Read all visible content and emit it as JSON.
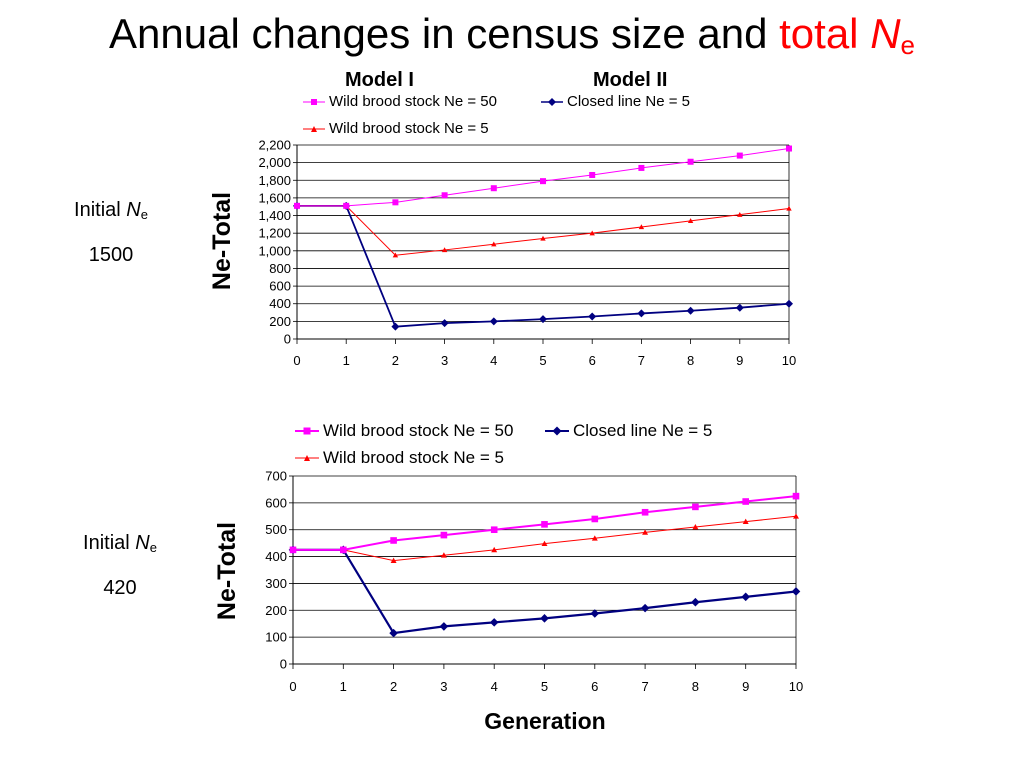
{
  "title": {
    "main": "Annual changes in census size and ",
    "red": "total ",
    "red_italic": "N",
    "red_sub": "e"
  },
  "model_labels": {
    "left": "Model I",
    "right": "Model II"
  },
  "side_labels": [
    {
      "prefix": "Initial ",
      "italic": "N",
      "sub": "e",
      "value": "1500"
    },
    {
      "prefix": "Initial ",
      "italic": "N",
      "sub": "e",
      "value": "420"
    }
  ],
  "chart_data": [
    {
      "type": "line",
      "ylabel": "Ne-Total",
      "xlabel": "",
      "x": [
        0,
        1,
        2,
        3,
        4,
        5,
        6,
        7,
        8,
        9,
        10
      ],
      "ylim": [
        0,
        2200
      ],
      "ytick_step": 200,
      "grid": true,
      "legend": "top",
      "series": [
        {
          "name": "Wild brood stock Ne = 50",
          "color": "#ff00ff",
          "marker": "square",
          "values": [
            1510,
            1510,
            1550,
            1630,
            1710,
            1790,
            1860,
            1940,
            2010,
            2080,
            2160
          ]
        },
        {
          "name": "Closed line Ne = 5",
          "color": "#000080",
          "marker": "diamond",
          "values": [
            1510,
            1510,
            140,
            180,
            200,
            225,
            255,
            290,
            320,
            355,
            400
          ]
        },
        {
          "name": "Wild brood stock Ne = 5",
          "color": "#ff0000",
          "marker": "triangle",
          "values": [
            1510,
            1510,
            950,
            1010,
            1075,
            1140,
            1200,
            1270,
            1340,
            1410,
            1480
          ]
        }
      ]
    },
    {
      "type": "line",
      "ylabel": "Ne-Total",
      "xlabel": "Generation",
      "x": [
        0,
        1,
        2,
        3,
        4,
        5,
        6,
        7,
        8,
        9,
        10
      ],
      "ylim": [
        0,
        700
      ],
      "ytick_step": 100,
      "grid": true,
      "legend": "top",
      "series": [
        {
          "name": "Wild brood stock Ne = 50",
          "color": "#ff00ff",
          "marker": "square",
          "values": [
            425,
            425,
            460,
            480,
            500,
            520,
            540,
            565,
            585,
            605,
            625
          ]
        },
        {
          "name": "Closed line Ne = 5",
          "color": "#000080",
          "marker": "diamond",
          "values": [
            425,
            425,
            115,
            140,
            155,
            170,
            188,
            208,
            230,
            250,
            270
          ]
        },
        {
          "name": "Wild brood stock Ne = 5",
          "color": "#ff0000",
          "marker": "triangle",
          "values": [
            425,
            425,
            385,
            405,
            425,
            448,
            468,
            490,
            510,
            530,
            550
          ]
        }
      ]
    }
  ]
}
